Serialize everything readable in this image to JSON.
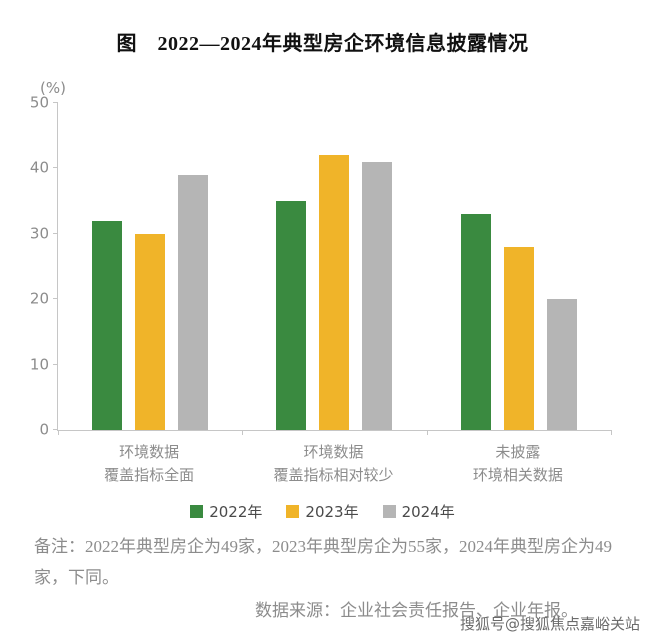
{
  "chart_data": {
    "type": "bar",
    "title": "图　2022—2024年典型房企环境信息披露情况",
    "unit_label": "(%)",
    "categories": [
      [
        "环境数据",
        "覆盖指标全面"
      ],
      [
        "环境数据",
        "覆盖指标相对较少"
      ],
      [
        "未披露",
        "环境相关数据"
      ]
    ],
    "series": [
      {
        "name": "2022年",
        "color": "#3a8a40",
        "values": [
          32,
          35,
          33
        ]
      },
      {
        "name": "2023年",
        "color": "#f0b429",
        "values": [
          30,
          42,
          28
        ]
      },
      {
        "name": "2024年",
        "color": "#b5b5b5",
        "values": [
          39,
          41,
          20
        ]
      }
    ],
    "ylim": [
      0,
      50
    ],
    "yticks": [
      0,
      10,
      20,
      30,
      40,
      50
    ],
    "grid": false,
    "legend_position": "bottom"
  },
  "notes": {
    "remark": "备注：2022年典型房企为49家，2023年典型房企为55家，2024年典型房企为49家，下同。",
    "source": "数据来源：企业社会责任报告、企业年报。"
  },
  "watermark": "搜狐号@搜狐焦点嘉峪关站"
}
